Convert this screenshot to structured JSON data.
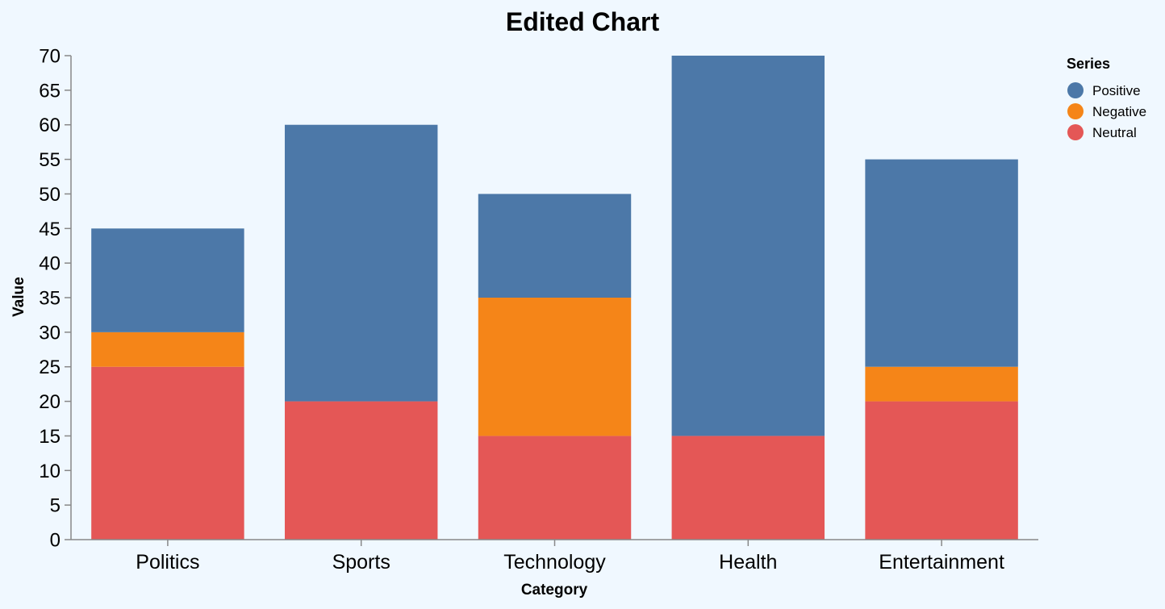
{
  "chart_data": {
    "type": "bar",
    "stacked": true,
    "title": "Edited Chart",
    "xlabel": "Category",
    "ylabel": "Value",
    "ylim": [
      0,
      70
    ],
    "yticks": [
      0,
      5,
      10,
      15,
      20,
      25,
      30,
      35,
      40,
      45,
      50,
      55,
      60,
      65,
      70
    ],
    "categories": [
      "Politics",
      "Sports",
      "Technology",
      "Health",
      "Entertainment"
    ],
    "series": [
      {
        "name": "Neutral",
        "color": "#e45756",
        "values": [
          25,
          20,
          15,
          15,
          20
        ]
      },
      {
        "name": "Negative",
        "color": "#f58518",
        "values": [
          5,
          0,
          20,
          0,
          5
        ]
      },
      {
        "name": "Positive",
        "color": "#4c78a8",
        "values": [
          15,
          40,
          15,
          55,
          30
        ]
      }
    ],
    "legend": {
      "title": "Series",
      "placement": "top-right",
      "order": [
        "Positive",
        "Negative",
        "Neutral"
      ]
    },
    "grid": false
  }
}
